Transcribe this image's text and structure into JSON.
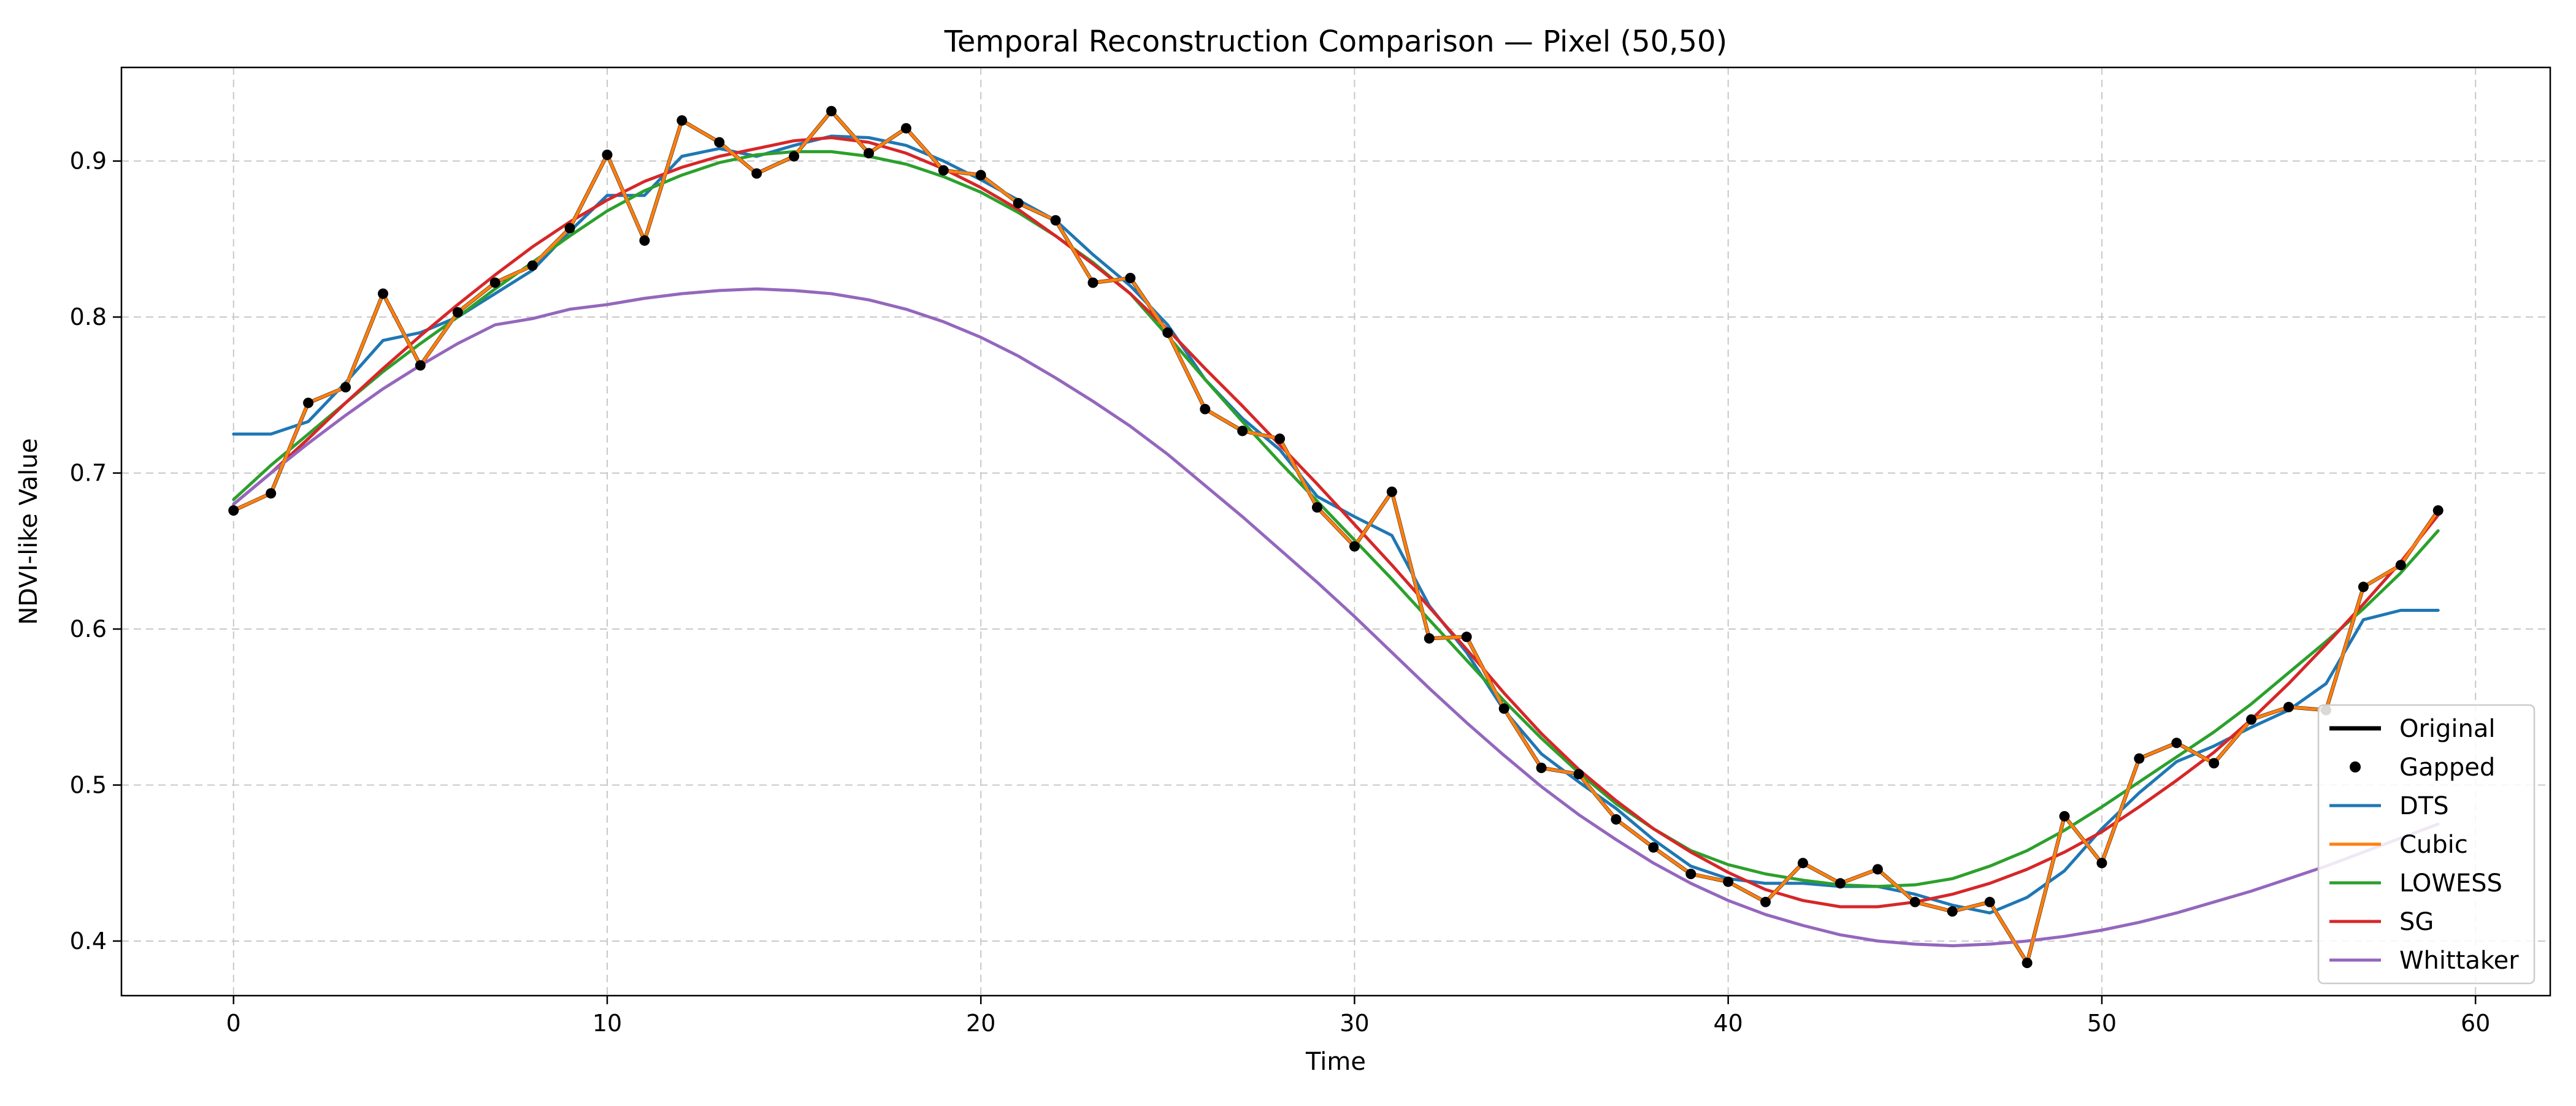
{
  "chart_data": {
    "type": "line",
    "title": "Temporal Reconstruction Comparison — Pixel (50,50)",
    "xlabel": "Time",
    "ylabel": "NDVI-like Value",
    "xlim": [
      -3,
      62
    ],
    "ylim": [
      0.365,
      0.96
    ],
    "xticks": [
      0,
      10,
      20,
      30,
      40,
      50,
      60
    ],
    "yticks": [
      0.4,
      0.5,
      0.6,
      0.7,
      0.8,
      0.9
    ],
    "xtick_labels": [
      "0",
      "10",
      "20",
      "30",
      "40",
      "50",
      "60"
    ],
    "ytick_labels": [
      "0.4",
      "0.5",
      "0.6",
      "0.7",
      "0.8",
      "0.9"
    ],
    "grid": true,
    "legend_position": "lower-right",
    "x": [
      0,
      1,
      2,
      3,
      4,
      5,
      6,
      7,
      8,
      9,
      10,
      11,
      12,
      13,
      14,
      15,
      16,
      17,
      18,
      19,
      20,
      21,
      22,
      23,
      24,
      25,
      26,
      27,
      28,
      29,
      30,
      31,
      32,
      33,
      34,
      35,
      36,
      37,
      38,
      39,
      40,
      41,
      42,
      43,
      44,
      45,
      46,
      47,
      48,
      49,
      50,
      51,
      52,
      53,
      54,
      55,
      56,
      57,
      58,
      59
    ],
    "series": [
      {
        "name": "Original",
        "color": "#000000",
        "style": "line",
        "values": [
          0.676,
          0.687,
          0.745,
          0.755,
          0.815,
          0.769,
          0.803,
          0.822,
          0.833,
          0.857,
          0.904,
          0.849,
          0.926,
          0.912,
          0.892,
          0.903,
          0.932,
          0.905,
          0.921,
          0.894,
          0.891,
          0.873,
          0.862,
          0.822,
          0.825,
          0.79,
          0.741,
          0.727,
          0.722,
          0.678,
          0.653,
          0.688,
          0.594,
          0.595,
          0.549,
          0.511,
          0.507,
          0.478,
          0.46,
          0.443,
          0.438,
          0.425,
          0.45,
          0.437,
          0.446,
          0.425,
          0.419,
          0.425,
          0.386,
          0.48,
          0.45,
          0.517,
          0.527,
          0.514,
          0.542,
          0.55,
          0.548,
          0.627,
          0.641,
          0.676
        ]
      },
      {
        "name": "Gapped",
        "color": "#000000",
        "style": "marker",
        "values": [
          0.676,
          0.687,
          0.745,
          0.755,
          0.815,
          0.769,
          0.803,
          0.822,
          0.833,
          0.857,
          0.904,
          0.849,
          0.926,
          0.912,
          0.892,
          0.903,
          0.932,
          0.905,
          0.921,
          0.894,
          0.891,
          0.873,
          0.862,
          0.822,
          0.825,
          0.79,
          0.741,
          0.727,
          0.722,
          0.678,
          0.653,
          0.688,
          0.594,
          0.595,
          0.549,
          0.511,
          0.507,
          0.478,
          0.46,
          0.443,
          0.438,
          0.425,
          0.45,
          0.437,
          0.446,
          0.425,
          0.419,
          0.425,
          0.386,
          0.48,
          0.45,
          0.517,
          0.527,
          0.514,
          0.542,
          0.55,
          0.548,
          0.627,
          0.641,
          0.676
        ]
      },
      {
        "name": "DTS",
        "color": "#1f77b4",
        "style": "line",
        "values": [
          0.725,
          0.725,
          0.733,
          0.758,
          0.785,
          0.79,
          0.8,
          0.815,
          0.83,
          0.855,
          0.878,
          0.878,
          0.903,
          0.908,
          0.903,
          0.91,
          0.916,
          0.915,
          0.91,
          0.9,
          0.888,
          0.875,
          0.862,
          0.84,
          0.82,
          0.795,
          0.76,
          0.735,
          0.715,
          0.685,
          0.672,
          0.66,
          0.615,
          0.585,
          0.548,
          0.52,
          0.502,
          0.485,
          0.465,
          0.448,
          0.44,
          0.437,
          0.437,
          0.435,
          0.435,
          0.43,
          0.423,
          0.418,
          0.428,
          0.445,
          0.472,
          0.495,
          0.515,
          0.525,
          0.537,
          0.548,
          0.565,
          0.606,
          0.612,
          0.612
        ]
      },
      {
        "name": "Cubic",
        "color": "#ff7f0e",
        "style": "line",
        "values": [
          0.676,
          0.687,
          0.745,
          0.755,
          0.815,
          0.769,
          0.803,
          0.822,
          0.833,
          0.857,
          0.904,
          0.849,
          0.926,
          0.912,
          0.892,
          0.903,
          0.932,
          0.905,
          0.921,
          0.894,
          0.891,
          0.873,
          0.862,
          0.822,
          0.825,
          0.79,
          0.741,
          0.727,
          0.722,
          0.678,
          0.653,
          0.688,
          0.594,
          0.595,
          0.549,
          0.511,
          0.507,
          0.478,
          0.46,
          0.443,
          0.438,
          0.425,
          0.45,
          0.437,
          0.446,
          0.425,
          0.419,
          0.425,
          0.386,
          0.48,
          0.45,
          0.517,
          0.527,
          0.514,
          0.542,
          0.55,
          0.548,
          0.627,
          0.641,
          0.676
        ]
      },
      {
        "name": "LOWESS",
        "color": "#2ca02c",
        "style": "line",
        "values": [
          0.683,
          0.705,
          0.725,
          0.745,
          0.765,
          0.783,
          0.8,
          0.818,
          0.835,
          0.852,
          0.868,
          0.881,
          0.891,
          0.899,
          0.904,
          0.906,
          0.906,
          0.903,
          0.898,
          0.89,
          0.88,
          0.867,
          0.852,
          0.835,
          0.815,
          0.788,
          0.76,
          0.733,
          0.707,
          0.682,
          0.657,
          0.632,
          0.606,
          0.58,
          0.554,
          0.53,
          0.508,
          0.488,
          0.472,
          0.458,
          0.449,
          0.443,
          0.439,
          0.436,
          0.435,
          0.436,
          0.44,
          0.448,
          0.458,
          0.471,
          0.486,
          0.502,
          0.518,
          0.534,
          0.552,
          0.572,
          0.592,
          0.613,
          0.636,
          0.663
        ]
      },
      {
        "name": "SG",
        "color": "#d62728",
        "style": "line",
        "values": [
          0.68,
          0.7,
          0.722,
          0.745,
          0.767,
          0.788,
          0.808,
          0.827,
          0.845,
          0.861,
          0.875,
          0.887,
          0.896,
          0.903,
          0.908,
          0.913,
          0.915,
          0.912,
          0.905,
          0.895,
          0.883,
          0.869,
          0.852,
          0.834,
          0.815,
          0.792,
          0.767,
          0.743,
          0.718,
          0.693,
          0.667,
          0.641,
          0.614,
          0.587,
          0.559,
          0.533,
          0.51,
          0.49,
          0.472,
          0.457,
          0.444,
          0.433,
          0.426,
          0.422,
          0.422,
          0.425,
          0.43,
          0.437,
          0.446,
          0.457,
          0.47,
          0.486,
          0.503,
          0.521,
          0.542,
          0.565,
          0.59,
          0.616,
          0.643,
          0.673
        ]
      },
      {
        "name": "Whittaker",
        "color": "#9467bd",
        "style": "line",
        "values": [
          0.68,
          0.7,
          0.719,
          0.737,
          0.754,
          0.769,
          0.783,
          0.795,
          0.799,
          0.805,
          0.808,
          0.812,
          0.815,
          0.817,
          0.818,
          0.817,
          0.815,
          0.811,
          0.805,
          0.797,
          0.787,
          0.775,
          0.761,
          0.746,
          0.73,
          0.712,
          0.692,
          0.672,
          0.651,
          0.63,
          0.608,
          0.585,
          0.562,
          0.54,
          0.519,
          0.499,
          0.481,
          0.465,
          0.45,
          0.437,
          0.426,
          0.417,
          0.41,
          0.404,
          0.4,
          0.398,
          0.397,
          0.398,
          0.4,
          0.403,
          0.407,
          0.412,
          0.418,
          0.425,
          0.432,
          0.44,
          0.448,
          0.457,
          0.466,
          0.475
        ]
      }
    ]
  }
}
